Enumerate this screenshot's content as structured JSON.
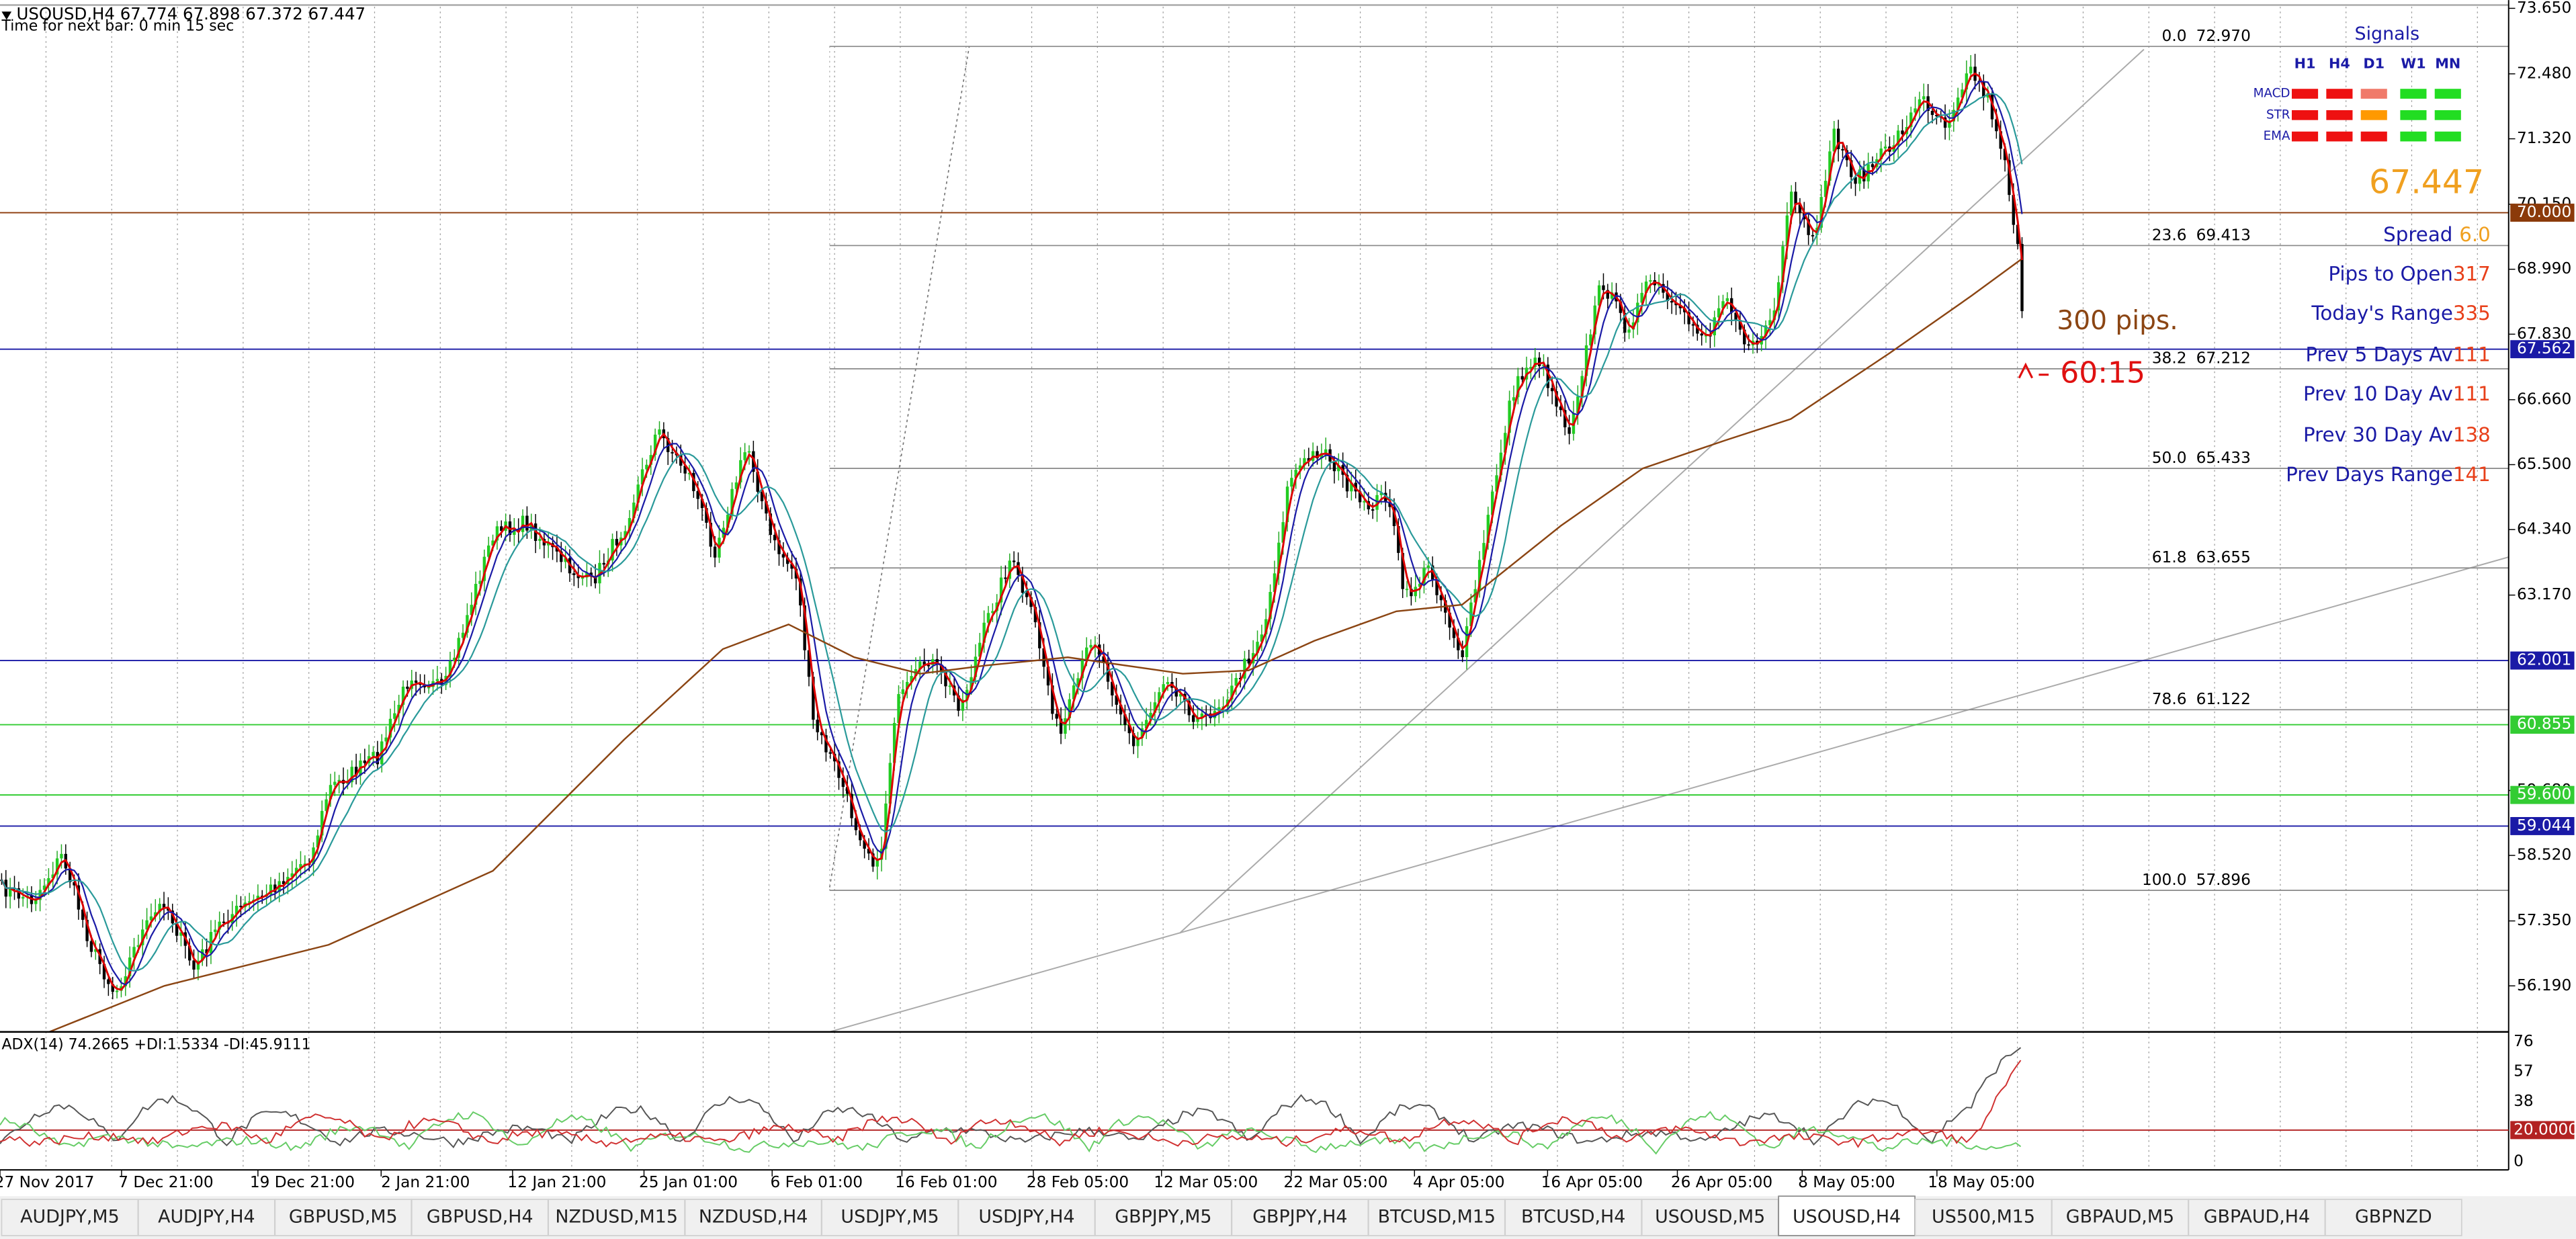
{
  "header": {
    "symbol_line": "USOUSD,H4  67.774 67.898 67.372 67.447",
    "timer": "Time for next bar: 0 min 15 sec"
  },
  "price_axis": {
    "labels": [
      "73.650",
      "72.480",
      "71.320",
      "70.150",
      "68.990",
      "67.830",
      "66.660",
      "65.500",
      "64.340",
      "63.170",
      "59.680",
      "58.520",
      "57.350",
      "56.190"
    ]
  },
  "price_levels": [
    {
      "label": "70.000",
      "color": "#8b3a0a"
    },
    {
      "label": "67.562",
      "color": "#1a1aa6"
    },
    {
      "label": "62.001",
      "color": "#1a1aa6"
    },
    {
      "label": "60.855",
      "color": "#33cc33"
    },
    {
      "label": "59.600",
      "color": "#33cc33"
    },
    {
      "label": "59.044",
      "color": "#1a1aa6"
    }
  ],
  "fibonacci": [
    {
      "ratio": "0.0",
      "price": "72.970"
    },
    {
      "ratio": "23.6",
      "price": "69.413"
    },
    {
      "ratio": "38.2",
      "price": "67.212"
    },
    {
      "ratio": "50.0",
      "price": "65.433"
    },
    {
      "ratio": "61.8",
      "price": "63.655"
    },
    {
      "ratio": "78.6",
      "price": "61.122"
    },
    {
      "ratio": "100.0",
      "price": "57.896"
    }
  ],
  "signals": {
    "title": "Signals",
    "columns": [
      "H1",
      "H4",
      "D1",
      "W1",
      "MN"
    ],
    "rows": [
      {
        "name": "MACD",
        "colors": [
          "#ee1111",
          "#ee1111",
          "#f07a6a",
          "#22dd22",
          "#22dd22"
        ]
      },
      {
        "name": "STR",
        "colors": [
          "#ee1111",
          "#ee1111",
          "#ff9900",
          "#22dd22",
          "#22dd22"
        ]
      },
      {
        "name": "EMA",
        "colors": [
          "#ee1111",
          "#ee1111",
          "#ee1111",
          "#22dd22",
          "#22dd22"
        ]
      }
    ]
  },
  "info": {
    "price": "67.447",
    "rows": [
      {
        "label": "Spread",
        "value": "6.0",
        "value_color": "#f0a020"
      },
      {
        "label": "Pips to Open",
        "value": "317",
        "value_color": "#e8401a"
      },
      {
        "label": "Today's Range",
        "value": "335",
        "value_color": "#e8401a"
      },
      {
        "label": "Prev 5 Days Av",
        "value": "111",
        "value_color": "#e8401a"
      },
      {
        "label": "Prev 10 Day Av",
        "value": "111",
        "value_color": "#e8401a"
      },
      {
        "label": "Prev 30 Day Av",
        "value": "138",
        "value_color": "#e8401a"
      },
      {
        "label": "Prev Days Range",
        "value": "141",
        "value_color": "#e8401a"
      }
    ]
  },
  "annotations": {
    "pips": "300 pips.",
    "timer": "60:15"
  },
  "adx": {
    "label": "ADX(14) 74.2665 +DI:1.5334 -DI:45.9111",
    "scale": [
      "76",
      "57",
      "38",
      "0"
    ],
    "level": "20.0000"
  },
  "time_axis": [
    "27 Nov 2017",
    "7 Dec 21:00",
    "19 Dec 21:00",
    "2 Jan 21:00",
    "12 Jan 21:00",
    "25 Jan 01:00",
    "6 Feb 01:00",
    "16 Feb 01:00",
    "28 Feb 05:00",
    "12 Mar 05:00",
    "22 Mar 05:00",
    "4 Apr 05:00",
    "16 Apr 05:00",
    "26 Apr 05:00",
    "8 May 05:00",
    "18 May 05:00"
  ],
  "tabs": [
    "AUDJPY,M5",
    "AUDJPY,H4",
    "GBPUSD,M5",
    "GBPUSD,H4",
    "NZDUSD,M15",
    "NZDUSD,H4",
    "USDJPY,M5",
    "USDJPY,H4",
    "GBPJPY,M5",
    "GBPJPY,H4",
    "BTCUSD,M15",
    "BTCUSD,H4",
    "USOUSD,M5",
    "USOUSD,H4",
    "US500,M15",
    "GBPAUD,M5",
    "GBPAUD,H4",
    "GBPNZD"
  ],
  "active_tab": 13
}
